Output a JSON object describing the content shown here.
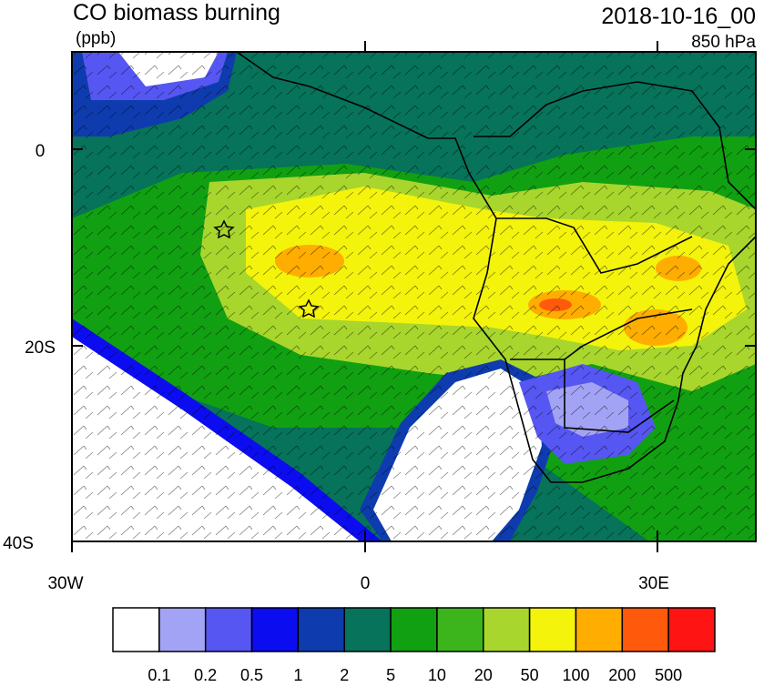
{
  "header": {
    "title": "CO biomass burning",
    "units": "(ppb)",
    "time": "2018-10-16_00",
    "level": "850 hPa"
  },
  "map": {
    "lat_labels": [
      "0",
      "20S",
      "40S"
    ],
    "lon_labels": [
      "30W",
      "0",
      "30E"
    ]
  },
  "colorbar": {
    "colors": [
      "#ffffff",
      "#a3a3f5",
      "#5656f2",
      "#0c0cf0",
      "#0e3cae",
      "#06735a",
      "#11a012",
      "#3cb41c",
      "#a8d62c",
      "#f3f30c",
      "#ffad00",
      "#ff5a0c",
      "#ff1414"
    ],
    "labels": [
      "0.1",
      "0.2",
      "0.5",
      "1",
      "2",
      "5",
      "10",
      "20",
      "50",
      "100",
      "200",
      "500"
    ]
  }
}
